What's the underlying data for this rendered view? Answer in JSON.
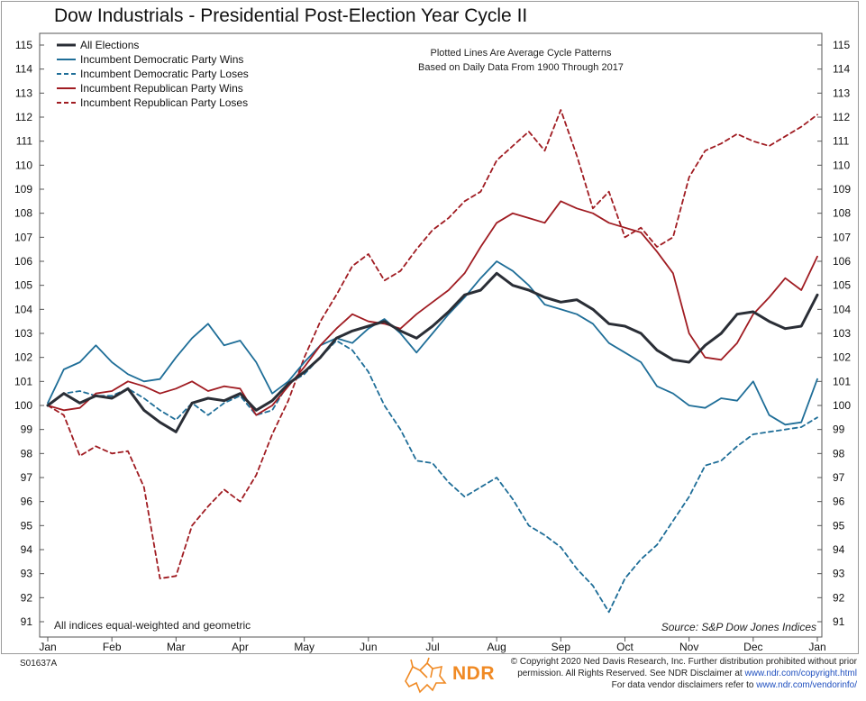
{
  "title": "Dow Industrials - Presidential Post-Election Year Cycle II",
  "notes": {
    "top_line1": "Plotted Lines Are Average Cycle Patterns",
    "top_line2": "Based on Daily Data From 1900 Through 2017",
    "bottom_left": "All indices equal-weighted and geometric",
    "source": "Source:   S&P Dow Jones Indices"
  },
  "footer": {
    "code": "S01637A",
    "logo_text": "NDR",
    "copyright_line1": "© Copyright 2020 Ned Davis Research, Inc. Further distribution prohibited without prior",
    "copyright_line2_pre": "permission. All Rights Reserved. See NDR Disclaimer at ",
    "copyright_link1": "www.ndr.com/copyright.html",
    "copyright_line3_pre": "For data vendor disclaimers refer to ",
    "copyright_link2": "www.ndr.com/vendorinfo/"
  },
  "colors": {
    "all": "#2a2e36",
    "dem": "#1f6e98",
    "rep": "#a01c22",
    "axis": "#444444"
  },
  "chart_data": {
    "type": "line",
    "ylim": [
      91,
      115
    ],
    "yticks": [
      91,
      92,
      93,
      94,
      95,
      96,
      97,
      98,
      99,
      100,
      101,
      102,
      103,
      104,
      105,
      106,
      107,
      108,
      109,
      110,
      111,
      112,
      113,
      114,
      115
    ],
    "xlim": [
      0,
      12
    ],
    "xticks": [
      "Jan",
      "Feb",
      "Mar",
      "Apr",
      "May",
      "Jun",
      "Jul",
      "Aug",
      "Sep",
      "Oct",
      "Nov",
      "Dec",
      "Jan"
    ],
    "series": [
      {
        "name": "All Elections",
        "key": "all",
        "style": "solid-bold",
        "x": [
          0,
          0.25,
          0.5,
          0.75,
          1.0,
          1.25,
          1.5,
          1.75,
          2.0,
          2.25,
          2.5,
          2.75,
          3.0,
          3.25,
          3.5,
          3.75,
          4.0,
          4.25,
          4.5,
          4.75,
          5.0,
          5.25,
          5.5,
          5.75,
          6.0,
          6.25,
          6.5,
          6.75,
          7.0,
          7.25,
          7.5,
          7.75,
          8.0,
          8.25,
          8.5,
          8.75,
          9.0,
          9.25,
          9.5,
          9.75,
          10.0,
          10.25,
          10.5,
          10.75,
          11.0,
          11.25,
          11.5,
          11.75,
          12.0
        ],
        "y": [
          100.0,
          100.5,
          100.1,
          100.4,
          100.3,
          100.7,
          99.8,
          99.3,
          98.9,
          100.1,
          100.3,
          100.2,
          100.5,
          99.8,
          100.2,
          100.9,
          101.4,
          102.0,
          102.8,
          103.1,
          103.3,
          103.5,
          103.1,
          102.8,
          103.3,
          103.9,
          104.6,
          104.8,
          105.5,
          105.0,
          104.8,
          104.5,
          104.3,
          104.4,
          104.0,
          103.4,
          103.3,
          103.0,
          102.3,
          101.9,
          101.8,
          102.5,
          103.0,
          103.8,
          103.9,
          103.5,
          103.2,
          103.3,
          104.6
        ]
      },
      {
        "name": "Incumbent Democratic Party Wins",
        "key": "dem",
        "style": "solid",
        "x": [
          0,
          0.25,
          0.5,
          0.75,
          1.0,
          1.25,
          1.5,
          1.75,
          2.0,
          2.25,
          2.5,
          2.75,
          3.0,
          3.25,
          3.5,
          3.75,
          4.0,
          4.25,
          4.5,
          4.75,
          5.0,
          5.25,
          5.5,
          5.75,
          6.0,
          6.25,
          6.5,
          6.75,
          7.0,
          7.25,
          7.5,
          7.75,
          8.0,
          8.25,
          8.5,
          8.75,
          9.0,
          9.25,
          9.5,
          9.75,
          10.0,
          10.25,
          10.5,
          10.75,
          11.0,
          11.25,
          11.5,
          11.75,
          12.0
        ],
        "y": [
          100.1,
          101.5,
          101.8,
          102.5,
          101.8,
          101.3,
          101.0,
          101.1,
          102.0,
          102.8,
          103.4,
          102.5,
          102.7,
          101.8,
          100.5,
          101.0,
          101.8,
          102.5,
          102.8,
          102.6,
          103.2,
          103.6,
          103.0,
          102.2,
          103.0,
          103.8,
          104.5,
          105.3,
          106.0,
          105.6,
          105.0,
          104.2,
          104.0,
          103.8,
          103.4,
          102.6,
          102.2,
          101.8,
          100.8,
          100.5,
          100.0,
          99.9,
          100.3,
          100.2,
          101.0,
          99.6,
          99.2,
          99.3,
          101.1
        ]
      },
      {
        "name": "Incumbent Democratic Party Loses",
        "key": "dem",
        "style": "dashed",
        "x": [
          0,
          0.25,
          0.5,
          0.75,
          1.0,
          1.25,
          1.5,
          1.75,
          2.0,
          2.25,
          2.5,
          2.75,
          3.0,
          3.25,
          3.5,
          3.75,
          4.0,
          4.25,
          4.5,
          4.75,
          5.0,
          5.25,
          5.5,
          5.75,
          6.0,
          6.25,
          6.5,
          6.75,
          7.0,
          7.25,
          7.5,
          7.75,
          8.0,
          8.25,
          8.5,
          8.75,
          9.0,
          9.25,
          9.5,
          9.75,
          10.0,
          10.25,
          10.5,
          10.75,
          11.0,
          11.25,
          11.5,
          11.75,
          12.0
        ],
        "y": [
          100.0,
          100.5,
          100.6,
          100.4,
          100.4,
          100.7,
          100.3,
          99.8,
          99.4,
          100.1,
          99.6,
          100.1,
          100.4,
          99.6,
          99.8,
          100.9,
          101.3,
          102.0,
          102.7,
          102.3,
          101.4,
          100.0,
          99.0,
          97.7,
          97.6,
          96.8,
          96.2,
          96.6,
          97.0,
          96.1,
          95.0,
          94.6,
          94.1,
          93.2,
          92.5,
          91.4,
          92.8,
          93.6,
          94.2,
          95.2,
          96.2,
          97.5,
          97.7,
          98.3,
          98.8,
          98.9,
          99.0,
          99.1,
          99.5
        ]
      },
      {
        "name": "Incumbent Republican Party Wins",
        "key": "rep",
        "style": "solid",
        "x": [
          0,
          0.25,
          0.5,
          0.75,
          1.0,
          1.25,
          1.5,
          1.75,
          2.0,
          2.25,
          2.5,
          2.75,
          3.0,
          3.25,
          3.5,
          3.75,
          4.0,
          4.25,
          4.5,
          4.75,
          5.0,
          5.25,
          5.5,
          5.75,
          6.0,
          6.25,
          6.5,
          6.75,
          7.0,
          7.25,
          7.5,
          7.75,
          8.0,
          8.25,
          8.5,
          8.75,
          9.0,
          9.25,
          9.5,
          9.75,
          10.0,
          10.25,
          10.5,
          10.75,
          11.0,
          11.25,
          11.5,
          11.75,
          12.0
        ],
        "y": [
          100.0,
          99.8,
          99.9,
          100.5,
          100.6,
          101.0,
          100.8,
          100.5,
          100.7,
          101.0,
          100.6,
          100.8,
          100.7,
          99.6,
          100.0,
          100.8,
          101.6,
          102.5,
          103.2,
          103.8,
          103.5,
          103.4,
          103.2,
          103.8,
          104.3,
          104.8,
          105.5,
          106.6,
          107.6,
          108.0,
          107.8,
          107.6,
          108.5,
          108.2,
          108.0,
          107.6,
          107.4,
          107.2,
          106.4,
          105.5,
          103.0,
          102.0,
          101.9,
          102.6,
          103.8,
          104.5,
          105.3,
          104.8,
          106.2
        ]
      },
      {
        "name": "Incumbent Republican Party Loses",
        "key": "rep",
        "style": "dashed",
        "x": [
          0,
          0.25,
          0.5,
          0.75,
          1.0,
          1.25,
          1.5,
          1.75,
          2.0,
          2.25,
          2.5,
          2.75,
          3.0,
          3.25,
          3.5,
          3.75,
          4.0,
          4.25,
          4.5,
          4.75,
          5.0,
          5.25,
          5.5,
          5.75,
          6.0,
          6.25,
          6.5,
          6.75,
          7.0,
          7.25,
          7.5,
          7.75,
          8.0,
          8.25,
          8.5,
          8.75,
          9.0,
          9.25,
          9.5,
          9.75,
          10.0,
          10.25,
          10.5,
          10.75,
          11.0,
          11.25,
          11.5,
          11.75,
          12.0
        ],
        "y": [
          100.0,
          99.6,
          97.9,
          98.3,
          98.0,
          98.1,
          96.6,
          92.8,
          92.9,
          95.0,
          95.8,
          96.5,
          96.0,
          97.1,
          98.8,
          100.2,
          102.0,
          103.5,
          104.6,
          105.8,
          106.3,
          105.2,
          105.6,
          106.5,
          107.3,
          107.8,
          108.5,
          108.9,
          110.2,
          110.8,
          111.4,
          110.6,
          112.3,
          110.4,
          108.2,
          108.9,
          107.0,
          107.4,
          106.6,
          107.0,
          109.5,
          110.6,
          110.9,
          111.3,
          111.0,
          110.8,
          111.2,
          111.6,
          112.1
        ]
      }
    ]
  }
}
